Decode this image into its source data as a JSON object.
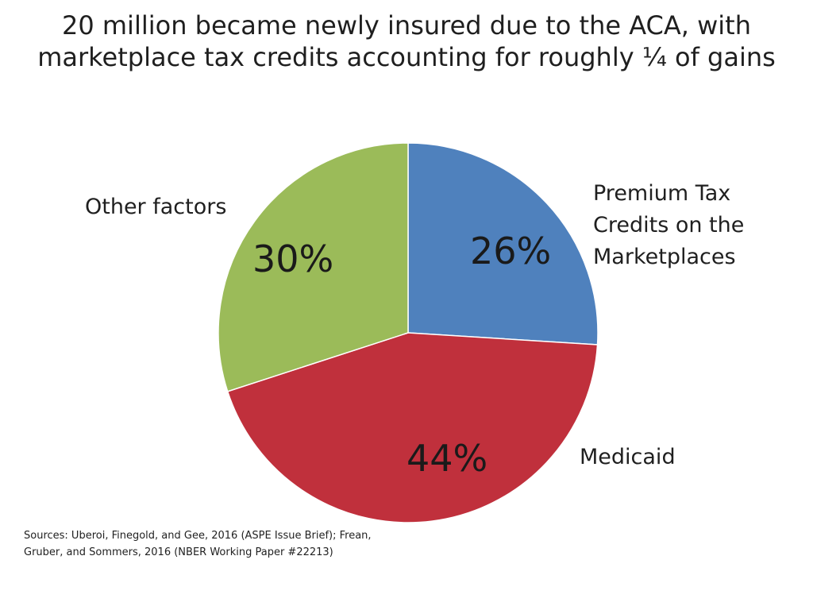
{
  "chart_data": {
    "type": "pie",
    "title_lines": [
      "20 million became newly insured due to the ACA, with",
      "marketplace tax credits accounting for roughly ¼ of gains"
    ],
    "slices": [
      {
        "label_lines": [
          "Premium Tax",
          "Credits on the",
          "Marketplaces"
        ],
        "value": 26,
        "value_label": "26%",
        "color": "#4F81BD"
      },
      {
        "label_lines": [
          "Medicaid"
        ],
        "value": 44,
        "value_label": "44%",
        "color": "#C0303C"
      },
      {
        "label_lines": [
          "Other factors"
        ],
        "value": 30,
        "value_label": "30%",
        "color": "#9BBB59"
      }
    ],
    "sources_lines": [
      "Sources: Uberoi, Finegold, and Gee, 2016 (ASPE Issue Brief); Frean,",
      "Gruber, and Sommers, 2016 (NBER Working Paper #22213)"
    ]
  }
}
